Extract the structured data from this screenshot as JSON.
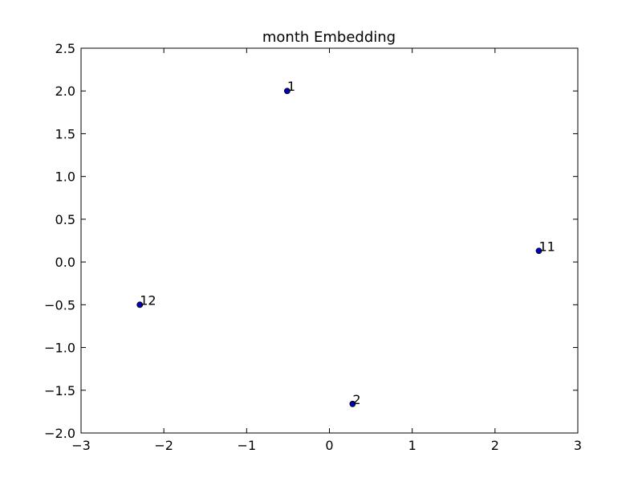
{
  "chart_data": {
    "type": "scatter",
    "title": "month Embedding",
    "xlabel": "",
    "ylabel": "",
    "xlim": [
      -3,
      3
    ],
    "ylim": [
      -2,
      2.5
    ],
    "grid": false,
    "x_ticks": [
      {
        "value": -3,
        "label": "−3"
      },
      {
        "value": -2,
        "label": "−2"
      },
      {
        "value": -1,
        "label": "−1"
      },
      {
        "value": 0,
        "label": "0"
      },
      {
        "value": 1,
        "label": "1"
      },
      {
        "value": 2,
        "label": "2"
      },
      {
        "value": 3,
        "label": "3"
      }
    ],
    "y_ticks": [
      {
        "value": -2.0,
        "label": "−2.0"
      },
      {
        "value": -1.5,
        "label": "−1.5"
      },
      {
        "value": -1.0,
        "label": "−1.0"
      },
      {
        "value": -0.5,
        "label": "−0.5"
      },
      {
        "value": 0.0,
        "label": "0.0"
      },
      {
        "value": 0.5,
        "label": "0.5"
      },
      {
        "value": 1.0,
        "label": "1.0"
      },
      {
        "value": 1.5,
        "label": "1.5"
      },
      {
        "value": 2.0,
        "label": "2.0"
      },
      {
        "value": 2.5,
        "label": "2.5"
      }
    ],
    "points": [
      {
        "label": "1",
        "x": -0.51,
        "y": 2.0
      },
      {
        "label": "11",
        "x": 2.53,
        "y": 0.13
      },
      {
        "label": "12",
        "x": -2.29,
        "y": -0.5
      },
      {
        "label": "2",
        "x": 0.28,
        "y": -1.66
      }
    ],
    "colors": {
      "marker_fill": "#0000bf",
      "marker_edge": "#000000",
      "axes": "#000000",
      "background": "#ffffff"
    }
  }
}
